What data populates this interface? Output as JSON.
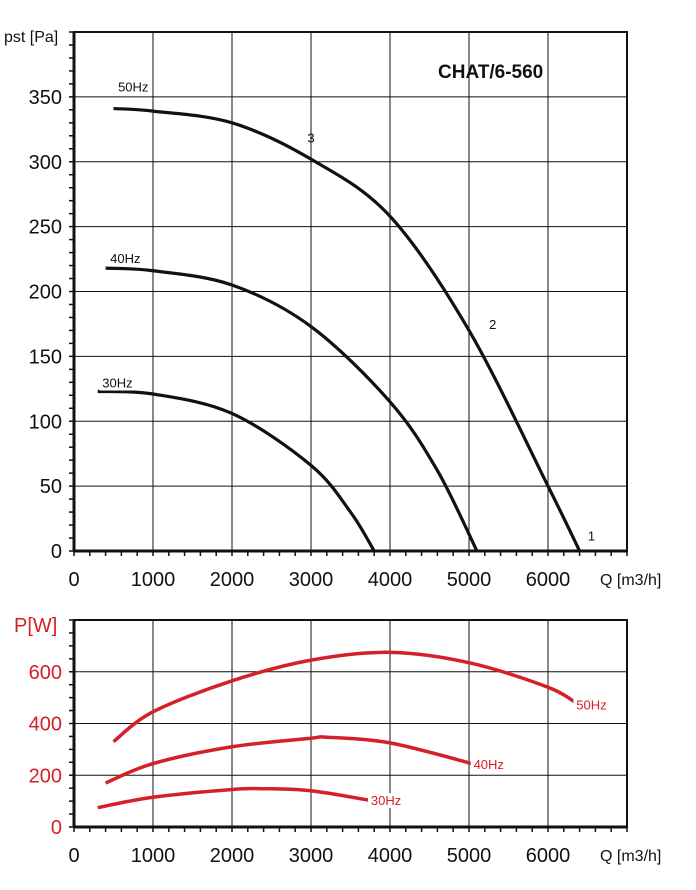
{
  "chart_data": [
    {
      "type": "line",
      "title": "CHAT/6-560",
      "xlabel": "Q [m3/h]",
      "xlabel_main": "Q",
      "xlabel_unit": "[m",
      "xlabel_sup": "3",
      "xlabel_unit_end": "/h]",
      "ylabel": "pst [Pa]",
      "ylabel_main": "p",
      "ylabel_sub": "st",
      "ylabel_unit": "[Pa]",
      "xlim": [
        0,
        7000
      ],
      "ylim": [
        0,
        400
      ],
      "xticks": [
        0,
        1000,
        2000,
        3000,
        4000,
        5000,
        6000
      ],
      "yticks": [
        0,
        50,
        100,
        150,
        200,
        250,
        300,
        350
      ],
      "grid": true,
      "color": "#111111",
      "series": [
        {
          "name": "50Hz",
          "x": [
            500,
            1000,
            2000,
            3000,
            4000,
            5000,
            6000,
            6400
          ],
          "y": [
            341,
            339,
            330,
            302,
            258,
            170,
            50,
            0
          ]
        },
        {
          "name": "40Hz",
          "x": [
            400,
            1000,
            2000,
            3000,
            4000,
            4600,
            5100
          ],
          "y": [
            218,
            216,
            205,
            173,
            115,
            62,
            0
          ]
        },
        {
          "name": "30Hz",
          "x": [
            300,
            1000,
            2000,
            3000,
            3500,
            3800
          ],
          "y": [
            123,
            121,
            106,
            66,
            30,
            0
          ]
        }
      ],
      "series_labels": [
        {
          "text": "50Hz",
          "x": 750,
          "y": 354
        },
        {
          "text": "40Hz",
          "x": 650,
          "y": 222
        },
        {
          "text": "30Hz",
          "x": 550,
          "y": 126
        }
      ],
      "annotations": [
        {
          "text": "3",
          "x": 3000,
          "y": 315
        },
        {
          "text": "2",
          "x": 5300,
          "y": 171
        },
        {
          "text": "1",
          "x": 6550,
          "y": 8
        }
      ]
    },
    {
      "type": "line",
      "title": "",
      "xlabel": "Q [m3/h]",
      "xlabel_main": "Q",
      "xlabel_unit": "[m",
      "xlabel_sup": "3",
      "xlabel_unit_end": "/h]",
      "ylabel": "P[W]",
      "ylabel_main": "P",
      "ylabel_unit": "[W]",
      "xlim": [
        0,
        7000
      ],
      "ylim": [
        0,
        800
      ],
      "xticks": [
        0,
        1000,
        2000,
        3000,
        4000,
        5000,
        6000
      ],
      "yticks": [
        0,
        200,
        400,
        600
      ],
      "grid": true,
      "color": "#d42027",
      "series": [
        {
          "name": "50Hz",
          "x": [
            500,
            1000,
            2000,
            3000,
            4000,
            5000,
            6000,
            6400
          ],
          "y": [
            330,
            445,
            565,
            645,
            675,
            635,
            540,
            470
          ]
        },
        {
          "name": "40Hz",
          "x": [
            400,
            1000,
            2000,
            3000,
            3200,
            4000,
            5100
          ],
          "y": [
            170,
            245,
            310,
            343,
            347,
            325,
            240
          ]
        },
        {
          "name": "30Hz",
          "x": [
            300,
            1000,
            2000,
            2400,
            3000,
            3800
          ],
          "y": [
            75,
            115,
            145,
            148,
            140,
            100
          ]
        }
      ],
      "series_labels": [
        {
          "text": "50Hz",
          "x": 6550,
          "y": 455
        },
        {
          "text": "40Hz",
          "x": 5250,
          "y": 225
        },
        {
          "text": "30Hz",
          "x": 3950,
          "y": 85
        }
      ]
    }
  ]
}
